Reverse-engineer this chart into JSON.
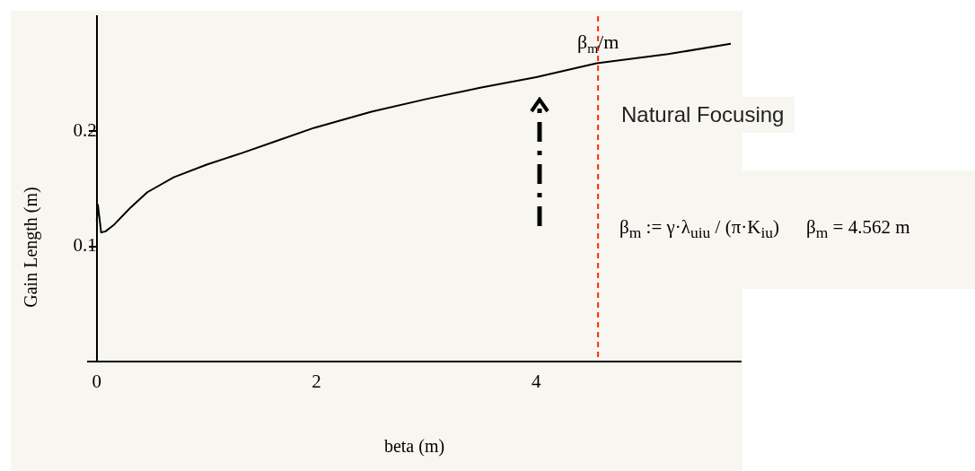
{
  "chart_data": {
    "type": "line",
    "xlabel": "beta (m)",
    "ylabel": "Gain Length (m)",
    "xlim": [
      -0.08,
      5.86
    ],
    "ylim": [
      0,
      0.3
    ],
    "xticks": [
      0,
      2,
      4
    ],
    "yticks": [
      0.1,
      0.2
    ],
    "grid": false,
    "legend": false,
    "marker": "none",
    "line_style": "solid",
    "series": [
      {
        "color": "#000000",
        "x": [
          0,
          0.01,
          0.04,
          0.08,
          0.16,
          0.3,
          0.46,
          0.7,
          1.0,
          1.32,
          1.65,
          1.98,
          2.5,
          3.0,
          3.5,
          4.0,
          4.55,
          5.2,
          5.77
        ],
        "values": [
          0.122,
          0.136,
          0.112,
          0.113,
          0.119,
          0.133,
          0.147,
          0.16,
          0.171,
          0.181,
          0.192,
          0.203,
          0.217,
          0.228,
          0.238,
          0.247,
          0.259,
          0.267,
          0.276
        ]
      }
    ],
    "ref_lines": [
      {
        "axis": "x",
        "value": 4.562,
        "label": "β$_{m}$/m",
        "color": "#ff2a00",
        "line_style": "dashed"
      }
    ],
    "annotations": [
      "Natural Focusing",
      "β$_{m}$ := γ·λ$_{u}$$_{iu}$ / (π·K$_{iu}$)",
      "β$_{m}$ = 4.562 m"
    ]
  }
}
